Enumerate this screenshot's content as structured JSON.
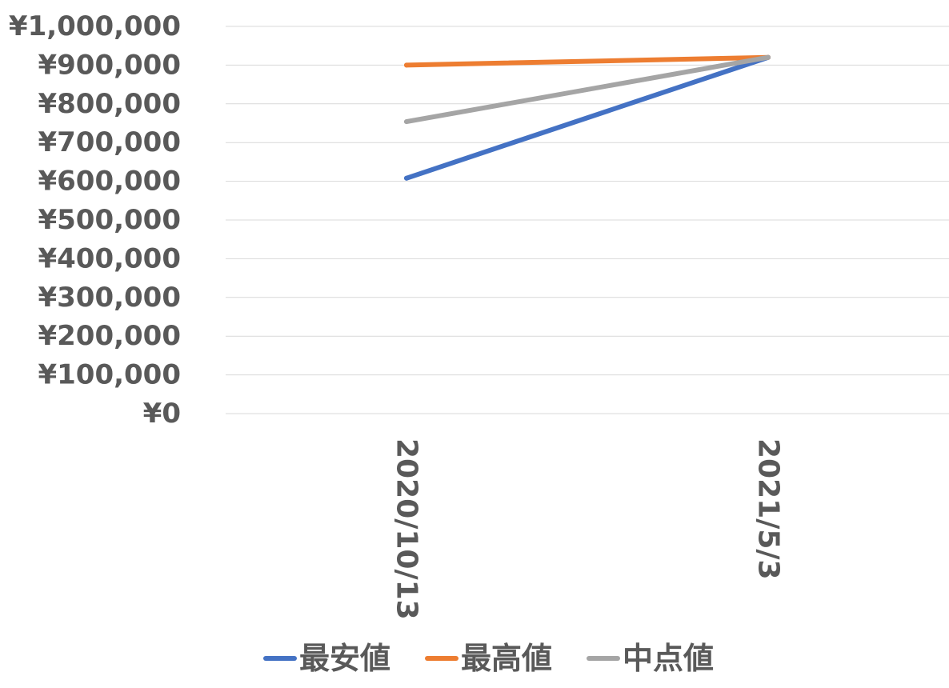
{
  "chart_data": {
    "type": "line",
    "title": "",
    "xlabel": "",
    "ylabel": "",
    "categories": [
      "2020/10/13",
      "2021/5/3"
    ],
    "ylim": [
      0,
      1000000
    ],
    "yticks": [
      0,
      100000,
      200000,
      300000,
      400000,
      500000,
      600000,
      700000,
      800000,
      900000,
      1000000
    ],
    "ytick_labels": [
      "¥0",
      "¥100,000",
      "¥200,000",
      "¥300,000",
      "¥400,000",
      "¥500,000",
      "¥600,000",
      "¥700,000",
      "¥800,000",
      "¥900,000",
      "¥1,000,000"
    ],
    "grid": true,
    "legend_position": "bottom",
    "series": [
      {
        "name": "最安値",
        "color": "#4472C4",
        "values": [
          608000,
          920000
        ]
      },
      {
        "name": "最高値",
        "color": "#ED7D31",
        "values": [
          900000,
          920000
        ]
      },
      {
        "name": "中点値",
        "color": "#A5A5A5",
        "values": [
          754000,
          920000
        ]
      }
    ]
  }
}
